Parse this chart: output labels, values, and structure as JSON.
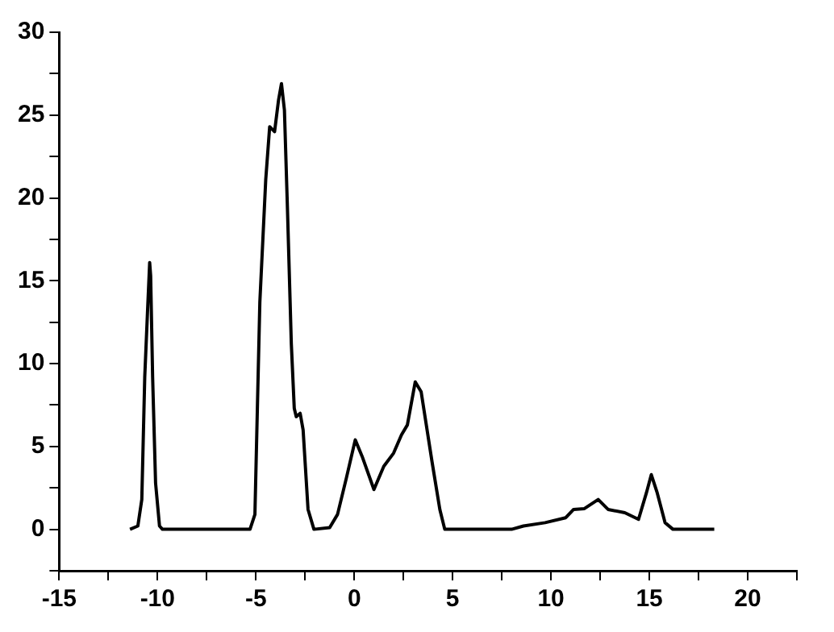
{
  "chart_data": {
    "type": "line",
    "x": [
      -11.4,
      -11.0,
      -10.8,
      -10.65,
      -10.5,
      -10.4,
      -10.35,
      -10.25,
      -10.1,
      -9.9,
      -9.75,
      -5.3,
      -5.05,
      -4.8,
      -4.5,
      -4.3,
      -4.05,
      -3.85,
      -3.7,
      -3.55,
      -3.4,
      -3.2,
      -3.05,
      -2.95,
      -2.75,
      -2.6,
      -2.35,
      -2.05,
      -1.25,
      -0.85,
      -0.4,
      0.05,
      0.4,
      1.0,
      1.5,
      2.0,
      2.4,
      2.7,
      3.1,
      3.4,
      3.95,
      4.35,
      4.6,
      8.0,
      8.6,
      9.7,
      10.75,
      11.15,
      11.7,
      12.4,
      12.9,
      13.75,
      14.45,
      14.85,
      15.1,
      15.4,
      15.8,
      16.2,
      18.3
    ],
    "series": [
      {
        "color": "#000000",
        "values": [
          0,
          0.2,
          1.8,
          9.2,
          13.4,
          16.1,
          15.3,
          9.2,
          2.8,
          0.2,
          0,
          0,
          0.9,
          13.7,
          21.1,
          24.3,
          24.0,
          25.9,
          26.9,
          25.3,
          19.5,
          11.2,
          7.3,
          6.8,
          7.0,
          6.0,
          1.2,
          0,
          0.1,
          0.9,
          3.1,
          5.4,
          4.4,
          2.4,
          3.8,
          4.6,
          5.7,
          6.3,
          8.9,
          8.3,
          4.1,
          1.2,
          0,
          0,
          0.2,
          0.4,
          0.7,
          1.2,
          1.25,
          1.8,
          1.2,
          1.0,
          0.6,
          2.2,
          3.3,
          2.2,
          0.4,
          0,
          0
        ]
      }
    ],
    "xlim": [
      -15,
      22.5
    ],
    "ylim": [
      -2.5,
      30
    ],
    "xticks": [
      -15,
      {
        "value": -12.5,
        "label": null
      },
      -10,
      {
        "value": -7.5,
        "label": null
      },
      -5,
      {
        "value": -2.5,
        "label": null
      },
      0,
      {
        "value": 2.5,
        "label": null
      },
      5,
      {
        "value": 7.5,
        "label": null
      },
      10,
      {
        "value": 12.5,
        "label": null
      },
      15,
      {
        "value": 17.5,
        "label": null
      },
      20,
      {
        "value": 22.5,
        "label": null
      }
    ],
    "yticks": [
      {
        "value": -2.5,
        "label": null
      },
      0,
      {
        "value": 2.5,
        "label": null
      },
      5,
      {
        "value": 7.5,
        "label": null
      },
      10,
      {
        "value": 12.5,
        "label": null
      },
      15,
      {
        "value": 17.5,
        "label": null
      },
      20,
      {
        "value": 22.5,
        "label": null
      },
      25,
      {
        "value": 27.5,
        "label": null
      },
      30
    ],
    "grid": false,
    "legend": false,
    "marker": "none",
    "line_style": "solid"
  }
}
